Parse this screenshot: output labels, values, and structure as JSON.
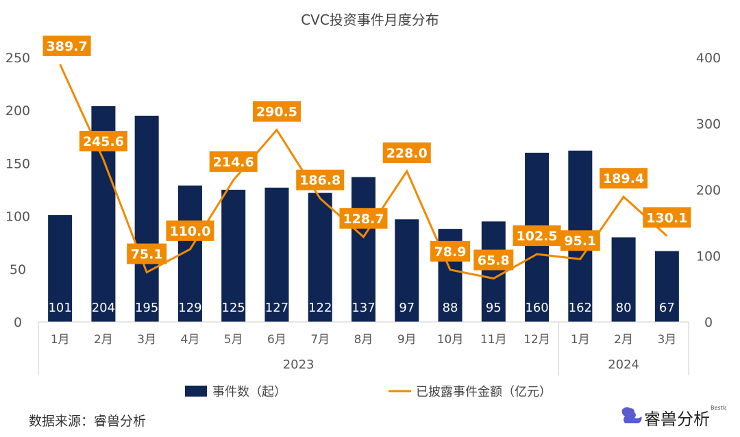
{
  "chart_data": {
    "type": "bar+line",
    "title": "CVC投资事件月度分布",
    "categories": [
      "1月",
      "2月",
      "3月",
      "4月",
      "5月",
      "6月",
      "7月",
      "8月",
      "9月",
      "10月",
      "11月",
      "12月",
      "1月",
      "2月",
      "3月"
    ],
    "groups": [
      {
        "label": "2023",
        "count": 12
      },
      {
        "label": "2024",
        "count": 3
      }
    ],
    "series": [
      {
        "name": "事件数（起）",
        "type": "bar",
        "axis": "left",
        "color": "#0f2553",
        "values": [
          101,
          204,
          195,
          129,
          125,
          127,
          122,
          137,
          97,
          88,
          95,
          160,
          162,
          80,
          67
        ]
      },
      {
        "name": "已披露事件金额（亿元）",
        "type": "line",
        "axis": "right",
        "color": "#f08a00",
        "values": [
          389.7,
          245.6,
          75.1,
          110.0,
          214.6,
          290.5,
          186.8,
          128.7,
          228.0,
          78.9,
          65.8,
          102.5,
          95.1,
          189.4,
          130.1
        ]
      }
    ],
    "left_axis": {
      "ylim": [
        0,
        250
      ],
      "ticks": [
        0,
        50,
        100,
        150,
        200,
        250
      ]
    },
    "right_axis": {
      "ylim": [
        0,
        400
      ],
      "ticks": [
        0,
        100,
        200,
        300,
        400
      ]
    },
    "grid": false,
    "legend": "bottom"
  },
  "source": "数据来源：睿兽分析",
  "logo": {
    "text": "睿兽分析",
    "subtext": "Bestla"
  }
}
